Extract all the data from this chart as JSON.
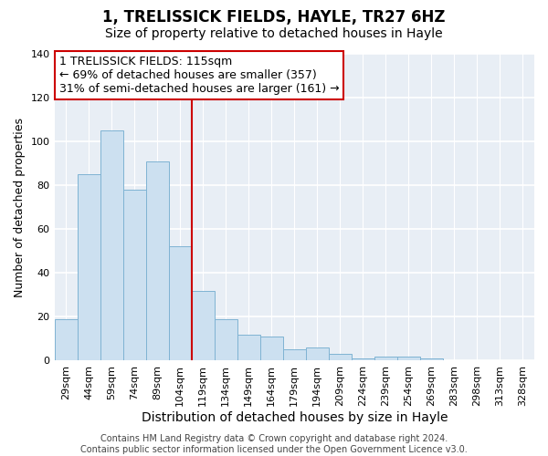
{
  "title": "1, TRELISSICK FIELDS, HAYLE, TR27 6HZ",
  "subtitle": "Size of property relative to detached houses in Hayle",
  "xlabel": "Distribution of detached houses by size in Hayle",
  "ylabel": "Number of detached properties",
  "bar_labels": [
    "29sqm",
    "44sqm",
    "59sqm",
    "74sqm",
    "89sqm",
    "104sqm",
    "119sqm",
    "134sqm",
    "149sqm",
    "164sqm",
    "179sqm",
    "194sqm",
    "209sqm",
    "224sqm",
    "239sqm",
    "254sqm",
    "269sqm",
    "283sqm",
    "298sqm",
    "313sqm",
    "328sqm"
  ],
  "bar_heights": [
    19,
    85,
    105,
    78,
    91,
    52,
    32,
    19,
    12,
    11,
    5,
    6,
    3,
    1,
    2,
    2,
    1,
    0,
    0,
    0,
    0
  ],
  "bar_color": "#cce0f0",
  "bar_edge_color": "#7fb3d3",
  "ylim": [
    0,
    140
  ],
  "yticks": [
    0,
    20,
    40,
    60,
    80,
    100,
    120,
    140
  ],
  "vline_x_index": 6,
  "vline_color": "#cc0000",
  "annotation_text": "1 TRELISSICK FIELDS: 115sqm\n← 69% of detached houses are smaller (357)\n31% of semi-detached houses are larger (161) →",
  "annotation_box_edgecolor": "#cc0000",
  "footer1": "Contains HM Land Registry data © Crown copyright and database right 2024.",
  "footer2": "Contains public sector information licensed under the Open Government Licence v3.0.",
  "background_color": "#ffffff",
  "plot_background_color": "#e8eef5",
  "grid_color": "#ffffff",
  "title_fontsize": 12,
  "subtitle_fontsize": 10,
  "xlabel_fontsize": 10,
  "ylabel_fontsize": 9,
  "tick_fontsize": 8,
  "annotation_fontsize": 9,
  "footer_fontsize": 7
}
